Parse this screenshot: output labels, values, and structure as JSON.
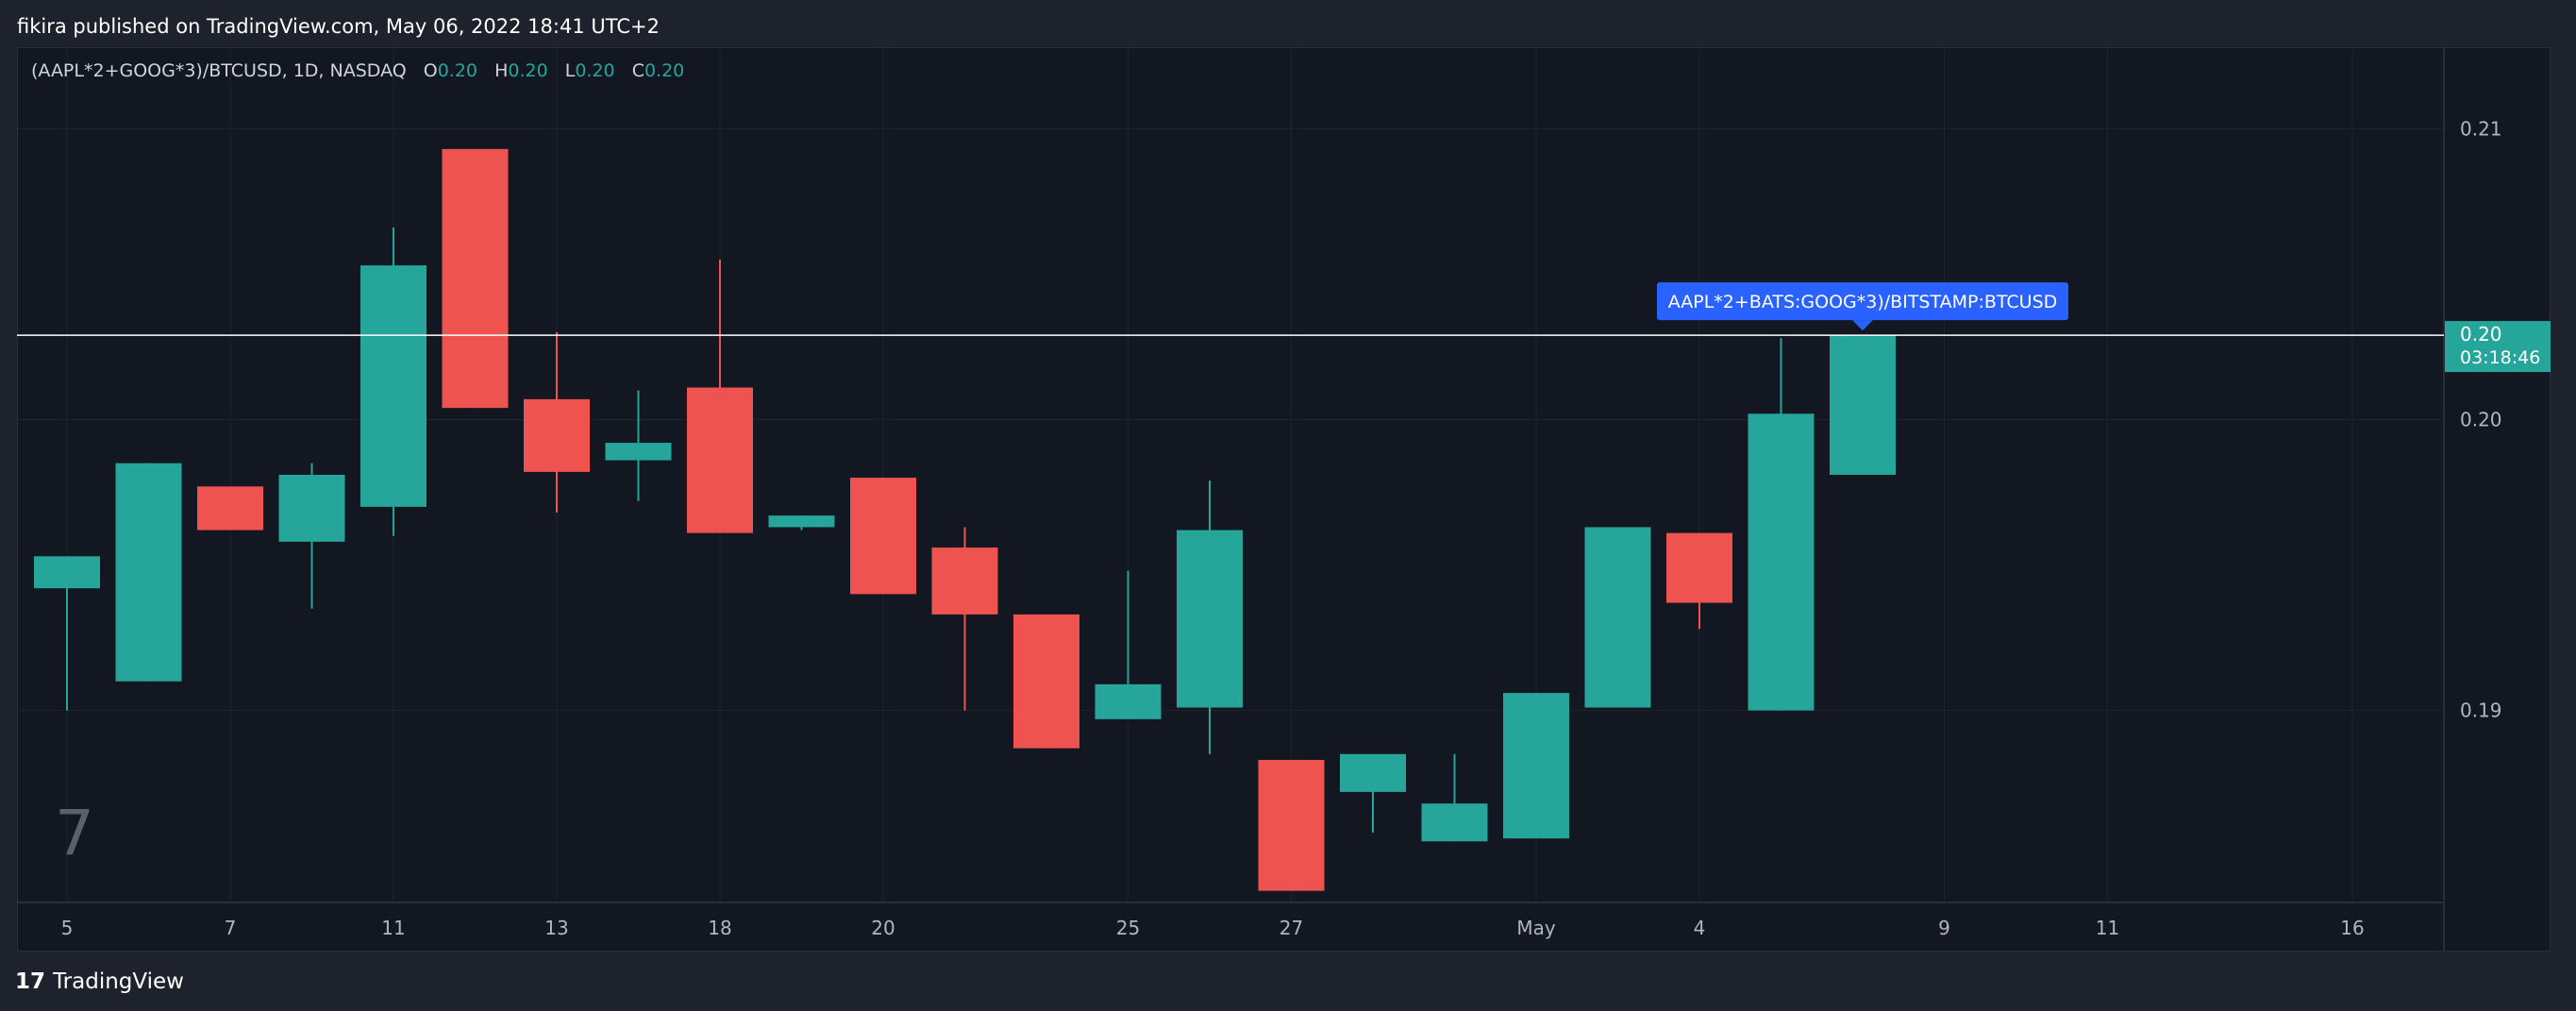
{
  "header": {
    "text": "fikira published on TradingView.com, May 06, 2022 18:41 UTC+2"
  },
  "legend": {
    "symbol": "(AAPL*2+GOOG*3)/BTCUSD, 1D, NASDAQ",
    "open_key": "O",
    "open": "0.20",
    "high_key": "H",
    "high": "0.20",
    "low_key": "L",
    "low": "0.20",
    "close_key": "C",
    "close": "0.20"
  },
  "footer": {
    "logo": "17",
    "brand": "TradingView"
  },
  "colors": {
    "up": "#26a69a",
    "down": "#ef5350",
    "background": "#131722",
    "frame": "#1e222d",
    "label_blue": "#2962ff",
    "price_line": "#ffffff"
  },
  "chart_data": {
    "type": "candlestick",
    "symbol": "(AAPL*2+GOOG*3)/BTCUSD",
    "interval": "1D",
    "exchange": "NASDAQ",
    "y_ticks": [
      "0.21",
      "0.20",
      "0.19"
    ],
    "y_tick_values": [
      0.21,
      0.2,
      0.19
    ],
    "ylim": [
      0.1834,
      0.2128
    ],
    "x_tick_labels": [
      "5",
      "7",
      "11",
      "13",
      "18",
      "20",
      "25",
      "27",
      "May",
      "4",
      "9",
      "11",
      "16"
    ],
    "x_tick_index": [
      0,
      2,
      4,
      6,
      8,
      10,
      13,
      15,
      18,
      20,
      23,
      25,
      28
    ],
    "candles": [
      {
        "date": "Apr 5",
        "open": 0.1942,
        "high": 0.1952,
        "low": 0.19,
        "close": 0.1953
      },
      {
        "date": "Apr 6",
        "open": 0.191,
        "high": 0.1985,
        "low": 0.191,
        "close": 0.1985
      },
      {
        "date": "Apr 7",
        "open": 0.1977,
        "high": 0.1977,
        "low": 0.1962,
        "close": 0.1962
      },
      {
        "date": "Apr 8",
        "open": 0.1958,
        "high": 0.1985,
        "low": 0.1935,
        "close": 0.1981
      },
      {
        "date": "Apr 11",
        "open": 0.197,
        "high": 0.2066,
        "low": 0.196,
        "close": 0.2053
      },
      {
        "date": "Apr 12",
        "open": 0.2093,
        "high": 0.2093,
        "low": 0.2004,
        "close": 0.2004
      },
      {
        "date": "Apr 13",
        "open": 0.2007,
        "high": 0.203,
        "low": 0.1968,
        "close": 0.1982
      },
      {
        "date": "Apr 14",
        "open": 0.1986,
        "high": 0.201,
        "low": 0.1972,
        "close": 0.1992
      },
      {
        "date": "Apr 18",
        "open": 0.2011,
        "high": 0.2055,
        "low": 0.1961,
        "close": 0.1961
      },
      {
        "date": "Apr 19",
        "open": 0.1963,
        "high": 0.1967,
        "low": 0.1962,
        "close": 0.1967
      },
      {
        "date": "Apr 20",
        "open": 0.198,
        "high": 0.198,
        "low": 0.194,
        "close": 0.194
      },
      {
        "date": "Apr 21",
        "open": 0.1956,
        "high": 0.1963,
        "low": 0.19,
        "close": 0.1933
      },
      {
        "date": "Apr 22",
        "open": 0.1933,
        "high": 0.1933,
        "low": 0.1887,
        "close": 0.1887
      },
      {
        "date": "Apr 25",
        "open": 0.1897,
        "high": 0.1948,
        "low": 0.1897,
        "close": 0.1909
      },
      {
        "date": "Apr 26",
        "open": 0.1901,
        "high": 0.1979,
        "low": 0.1885,
        "close": 0.1962
      },
      {
        "date": "Apr 27",
        "open": 0.1883,
        "high": 0.1883,
        "low": 0.1838,
        "close": 0.1838
      },
      {
        "date": "Apr 28",
        "open": 0.1872,
        "high": 0.1884,
        "low": 0.1858,
        "close": 0.1885
      },
      {
        "date": "Apr 29",
        "open": 0.1855,
        "high": 0.1885,
        "low": 0.1855,
        "close": 0.1868
      },
      {
        "date": "May 2",
        "open": 0.1856,
        "high": 0.1906,
        "low": 0.1856,
        "close": 0.1906
      },
      {
        "date": "May 3",
        "open": 0.1901,
        "high": 0.1963,
        "low": 0.1901,
        "close": 0.1963
      },
      {
        "date": "May 4",
        "open": 0.1961,
        "high": 0.1961,
        "low": 0.1928,
        "close": 0.1937
      },
      {
        "date": "May 5",
        "open": 0.19,
        "high": 0.2028,
        "low": 0.19,
        "close": 0.2002
      },
      {
        "date": "May 6",
        "open": 0.1981,
        "high": 0.2028,
        "low": 0.1981,
        "close": 0.2029
      }
    ],
    "last_price": {
      "value": 0.2029,
      "label": "0.20",
      "countdown": "03:18:46"
    },
    "price_line_label": "AAPL*2+BATS:GOOG*3)/BITSTAMP:BTCUSD",
    "watermark": "7",
    "grid": true
  }
}
